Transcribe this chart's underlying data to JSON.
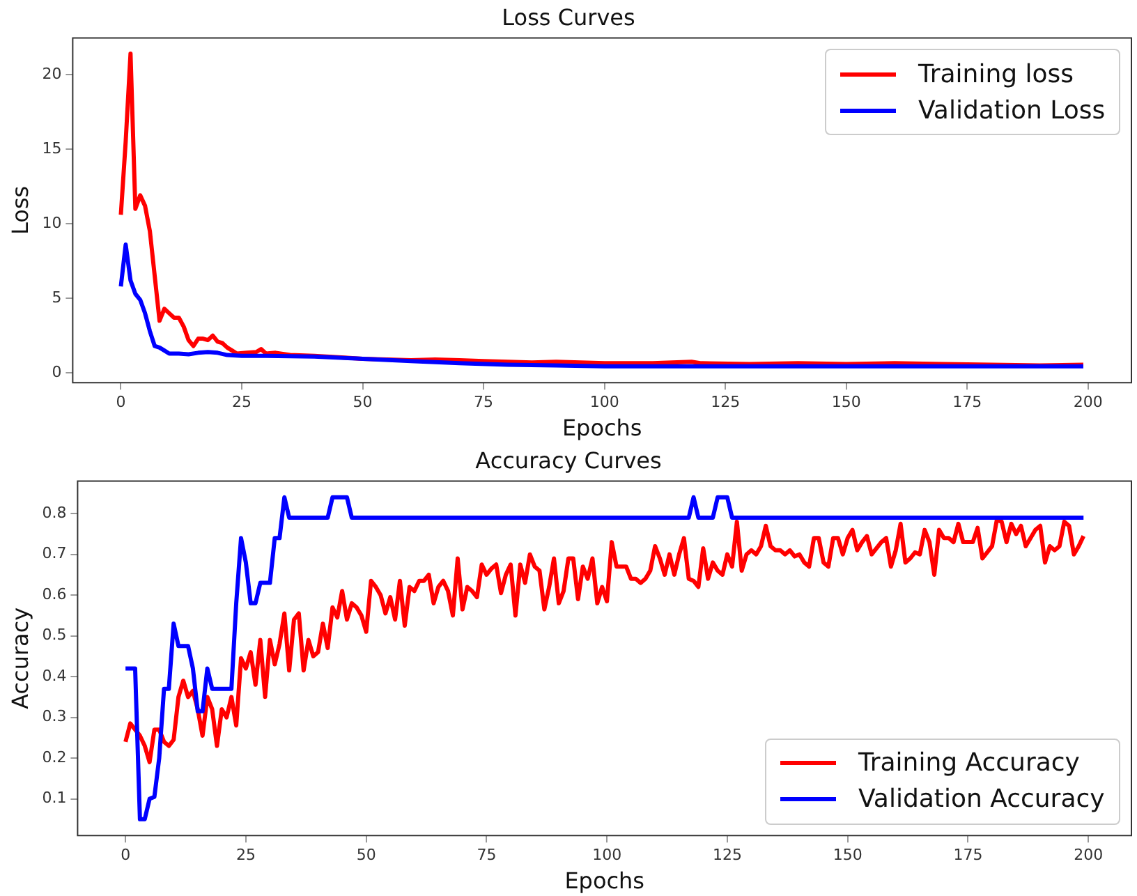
{
  "chart_data": [
    {
      "type": "line",
      "title": "Loss Curves",
      "xlabel": "Epochs",
      "ylabel": "Loss",
      "xlim": [
        -9.95,
        208.95
      ],
      "xticks": [
        0,
        25,
        50,
        75,
        100,
        125,
        150,
        175,
        200
      ],
      "ylim": [
        -0.65,
        22.45
      ],
      "yticks": [
        0,
        5,
        10,
        15,
        20
      ],
      "grid": false,
      "legend": "top right",
      "series": [
        {
          "name": "Training loss",
          "color": "#ff0000",
          "x": [
            0,
            1,
            2,
            3,
            4,
            5,
            6,
            7,
            8,
            9,
            10,
            11,
            12,
            13,
            14,
            15,
            16,
            17,
            18,
            19,
            20,
            21,
            22,
            23,
            24,
            26,
            28,
            29,
            30,
            32,
            35,
            40,
            45,
            50,
            55,
            60,
            65,
            70,
            75,
            80,
            85,
            90,
            95,
            100,
            110,
            118,
            120,
            130,
            140,
            150,
            160,
            170,
            180,
            190,
            199
          ],
          "values": [
            10.6,
            15.5,
            21.4,
            11,
            11.9,
            11.2,
            9.5,
            6.5,
            3.5,
            4.3,
            4.0,
            3.7,
            3.7,
            3.1,
            2.2,
            1.8,
            2.3,
            2.3,
            2.2,
            2.5,
            2.1,
            2.0,
            1.7,
            1.5,
            1.3,
            1.35,
            1.4,
            1.6,
            1.3,
            1.35,
            1.2,
            1.15,
            1.05,
            0.95,
            0.9,
            0.85,
            0.9,
            0.85,
            0.8,
            0.75,
            0.7,
            0.75,
            0.7,
            0.65,
            0.65,
            0.75,
            0.65,
            0.6,
            0.65,
            0.6,
            0.65,
            0.6,
            0.55,
            0.5,
            0.55
          ]
        },
        {
          "name": "Validation Loss",
          "color": "#0000ff",
          "x": [
            0,
            1,
            2,
            3,
            4,
            5,
            6,
            7,
            8,
            9,
            10,
            12,
            14,
            16,
            18,
            20,
            22,
            25,
            30,
            40,
            50,
            60,
            70,
            80,
            90,
            100,
            120,
            140,
            160,
            180,
            199
          ],
          "values": [
            5.8,
            8.6,
            6.2,
            5.3,
            4.9,
            4.0,
            2.8,
            1.8,
            1.7,
            1.5,
            1.3,
            1.3,
            1.25,
            1.35,
            1.4,
            1.35,
            1.2,
            1.15,
            1.15,
            1.1,
            0.95,
            0.8,
            0.65,
            0.55,
            0.5,
            0.45,
            0.45,
            0.45,
            0.45,
            0.45,
            0.45
          ]
        }
      ]
    },
    {
      "type": "line",
      "title": "Accuracy Curves",
      "xlabel": "Epochs",
      "ylabel": "Accuracy",
      "xlim": [
        -9.95,
        208.95
      ],
      "xticks": [
        0,
        25,
        50,
        75,
        100,
        125,
        150,
        175,
        200
      ],
      "ylim": [
        0.01,
        0.88
      ],
      "yticks": [
        0.1,
        0.2,
        0.3,
        0.4,
        0.5,
        0.6,
        0.7,
        0.8
      ],
      "grid": false,
      "legend": "bottom right",
      "series": [
        {
          "name": "Training Accuracy",
          "color": "#ff0000",
          "x": [
            0,
            1,
            2,
            3,
            4,
            5,
            6,
            7,
            8,
            9,
            10,
            11,
            12,
            13,
            14,
            15,
            16,
            17,
            18,
            19,
            20,
            21,
            22,
            23,
            24,
            25,
            26,
            27,
            28,
            29,
            30,
            31,
            32,
            33,
            34,
            35,
            36,
            37,
            38,
            39,
            40,
            41,
            42,
            43,
            44,
            45,
            46,
            47,
            48,
            49,
            50,
            51,
            52,
            53,
            54,
            55,
            56,
            57,
            58,
            59,
            60,
            61,
            62,
            63,
            64,
            65,
            66,
            67,
            68,
            69,
            70,
            71,
            72,
            73,
            74,
            75,
            76,
            77,
            78,
            79,
            80,
            81,
            82,
            83,
            84,
            85,
            86,
            87,
            88,
            89,
            90,
            91,
            92,
            93,
            94,
            95,
            96,
            97,
            98,
            99,
            100,
            101,
            102,
            103,
            104,
            105,
            106,
            107,
            108,
            109,
            110,
            111,
            112,
            113,
            114,
            115,
            116,
            117,
            118,
            119,
            120,
            121,
            122,
            123,
            124,
            125,
            126,
            127,
            128,
            129,
            130,
            131,
            132,
            133,
            134,
            135,
            136,
            137,
            138,
            139,
            140,
            141,
            142,
            143,
            144,
            145,
            146,
            147,
            148,
            149,
            150,
            151,
            152,
            153,
            154,
            155,
            156,
            157,
            158,
            159,
            160,
            161,
            162,
            163,
            164,
            165,
            166,
            167,
            168,
            169,
            170,
            171,
            172,
            173,
            174,
            175,
            176,
            177,
            178,
            179,
            180,
            181,
            182,
            183,
            184,
            185,
            186,
            187,
            188,
            189,
            190,
            191,
            192,
            193,
            194,
            195,
            196,
            197,
            198,
            199
          ],
          "values": [
            0.24,
            0.285,
            0.27,
            0.255,
            0.23,
            0.19,
            0.27,
            0.27,
            0.24,
            0.23,
            0.245,
            0.35,
            0.39,
            0.35,
            0.365,
            0.32,
            0.255,
            0.35,
            0.32,
            0.23,
            0.32,
            0.3,
            0.35,
            0.28,
            0.445,
            0.42,
            0.46,
            0.38,
            0.49,
            0.35,
            0.49,
            0.43,
            0.48,
            0.555,
            0.415,
            0.54,
            0.555,
            0.415,
            0.49,
            0.45,
            0.46,
            0.53,
            0.47,
            0.57,
            0.545,
            0.61,
            0.54,
            0.58,
            0.57,
            0.55,
            0.51,
            0.635,
            0.62,
            0.6,
            0.555,
            0.595,
            0.54,
            0.635,
            0.525,
            0.62,
            0.61,
            0.635,
            0.635,
            0.65,
            0.58,
            0.62,
            0.635,
            0.61,
            0.55,
            0.69,
            0.565,
            0.62,
            0.61,
            0.595,
            0.675,
            0.65,
            0.665,
            0.675,
            0.605,
            0.65,
            0.675,
            0.55,
            0.675,
            0.63,
            0.7,
            0.67,
            0.66,
            0.565,
            0.62,
            0.69,
            0.58,
            0.61,
            0.69,
            0.69,
            0.59,
            0.67,
            0.64,
            0.69,
            0.58,
            0.62,
            0.585,
            0.73,
            0.67,
            0.67,
            0.67,
            0.64,
            0.64,
            0.63,
            0.64,
            0.66,
            0.72,
            0.69,
            0.65,
            0.7,
            0.65,
            0.7,
            0.74,
            0.64,
            0.635,
            0.62,
            0.715,
            0.64,
            0.68,
            0.66,
            0.65,
            0.7,
            0.67,
            0.78,
            0.66,
            0.7,
            0.71,
            0.7,
            0.72,
            0.77,
            0.72,
            0.71,
            0.71,
            0.7,
            0.71,
            0.695,
            0.7,
            0.68,
            0.67,
            0.74,
            0.74,
            0.68,
            0.67,
            0.74,
            0.74,
            0.7,
            0.74,
            0.76,
            0.71,
            0.73,
            0.745,
            0.7,
            0.715,
            0.73,
            0.74,
            0.67,
            0.71,
            0.775,
            0.68,
            0.69,
            0.705,
            0.7,
            0.76,
            0.73,
            0.65,
            0.76,
            0.74,
            0.74,
            0.73,
            0.775,
            0.73,
            0.73,
            0.73,
            0.765,
            0.69,
            0.705,
            0.72,
            0.785,
            0.78,
            0.73,
            0.775,
            0.75,
            0.77,
            0.72,
            0.74,
            0.76,
            0.77,
            0.68,
            0.72,
            0.71,
            0.72,
            0.78,
            0.77,
            0.7,
            0.72,
            0.745
          ]
        },
        {
          "name": "Validation Accuracy",
          "color": "#0000ff",
          "x": [
            0,
            2,
            3,
            4,
            5,
            6,
            7,
            8,
            9,
            10,
            11,
            13,
            14,
            15,
            16,
            17,
            18,
            22,
            23,
            24,
            25,
            26,
            27,
            28,
            30,
            31,
            32,
            33,
            34,
            42,
            43,
            46,
            47,
            117,
            118,
            119,
            122,
            123,
            125,
            126,
            199
          ],
          "values": [
            0.42,
            0.42,
            0.05,
            0.05,
            0.1,
            0.105,
            0.2,
            0.37,
            0.37,
            0.53,
            0.475,
            0.475,
            0.42,
            0.315,
            0.315,
            0.42,
            0.37,
            0.37,
            0.58,
            0.74,
            0.68,
            0.58,
            0.58,
            0.63,
            0.63,
            0.74,
            0.74,
            0.84,
            0.79,
            0.79,
            0.84,
            0.84,
            0.79,
            0.79,
            0.84,
            0.79,
            0.79,
            0.84,
            0.84,
            0.79,
            0.79
          ]
        }
      ]
    }
  ]
}
